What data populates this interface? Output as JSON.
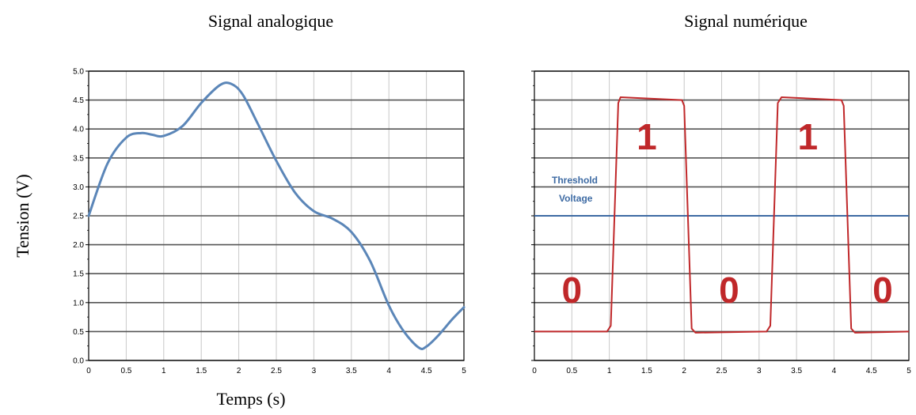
{
  "chart_data": [
    {
      "type": "line",
      "title": "Signal analogique",
      "xlabel": "Temps (s)",
      "ylabel": "Tension (V)",
      "xlim": [
        0,
        5
      ],
      "ylim": [
        0,
        5
      ],
      "x_ticks": [
        "0",
        "0.5",
        "1",
        "1.5",
        "2",
        "2.5",
        "3",
        "3.5",
        "4",
        "4.5",
        "5"
      ],
      "y_ticks": [
        "0.0",
        "0.5",
        "1.0",
        "1.5",
        "2.0",
        "2.5",
        "3.0",
        "3.5",
        "4.0",
        "4.5",
        "5.0"
      ],
      "grid": true,
      "color": "#5b86b8",
      "series": [
        {
          "x": [
            0,
            0.25,
            0.5,
            0.7,
            0.85,
            1.0,
            1.25,
            1.5,
            1.75,
            1.9,
            2.05,
            2.25,
            2.5,
            2.75,
            3.0,
            3.25,
            3.5,
            3.75,
            4.0,
            4.2,
            4.4,
            4.5,
            4.65,
            4.85,
            5.0
          ],
          "y": [
            2.5,
            3.4,
            3.85,
            3.93,
            3.9,
            3.88,
            4.05,
            4.45,
            4.76,
            4.78,
            4.6,
            4.1,
            3.45,
            2.9,
            2.58,
            2.45,
            2.22,
            1.72,
            0.95,
            0.5,
            0.22,
            0.24,
            0.42,
            0.72,
            0.92
          ]
        }
      ]
    },
    {
      "type": "line",
      "title": "Signal numérique",
      "xlim": [
        0,
        5
      ],
      "ylim": [
        0,
        5
      ],
      "x_ticks": [
        "0",
        "0.5",
        "1",
        "1.5",
        "2",
        "2.5",
        "3",
        "3.5",
        "4",
        "4.5",
        "5"
      ],
      "grid": true,
      "threshold": {
        "label_line1": "Threshold",
        "label_line2": "Voltage",
        "value": 2.5,
        "color": "#3d6aa3"
      },
      "bit_color": "#c0282a",
      "bits": [
        {
          "label": "0",
          "x_center": 0.5
        },
        {
          "label": "1",
          "x_center": 1.5
        },
        {
          "label": "0",
          "x_center": 2.6
        },
        {
          "label": "1",
          "x_center": 3.65
        },
        {
          "label": "0",
          "x_center": 4.65
        }
      ],
      "series": [
        {
          "color": "#c0282a",
          "x": [
            0,
            0.97,
            1.02,
            1.12,
            1.15,
            1.97,
            2.0,
            2.1,
            2.15,
            3.1,
            3.15,
            3.25,
            3.3,
            4.1,
            4.13,
            4.23,
            4.28,
            5.0
          ],
          "y": [
            0.5,
            0.5,
            0.6,
            4.45,
            4.55,
            4.5,
            4.4,
            0.55,
            0.48,
            0.5,
            0.6,
            4.45,
            4.55,
            4.5,
            4.4,
            0.55,
            0.48,
            0.5
          ]
        }
      ]
    }
  ]
}
